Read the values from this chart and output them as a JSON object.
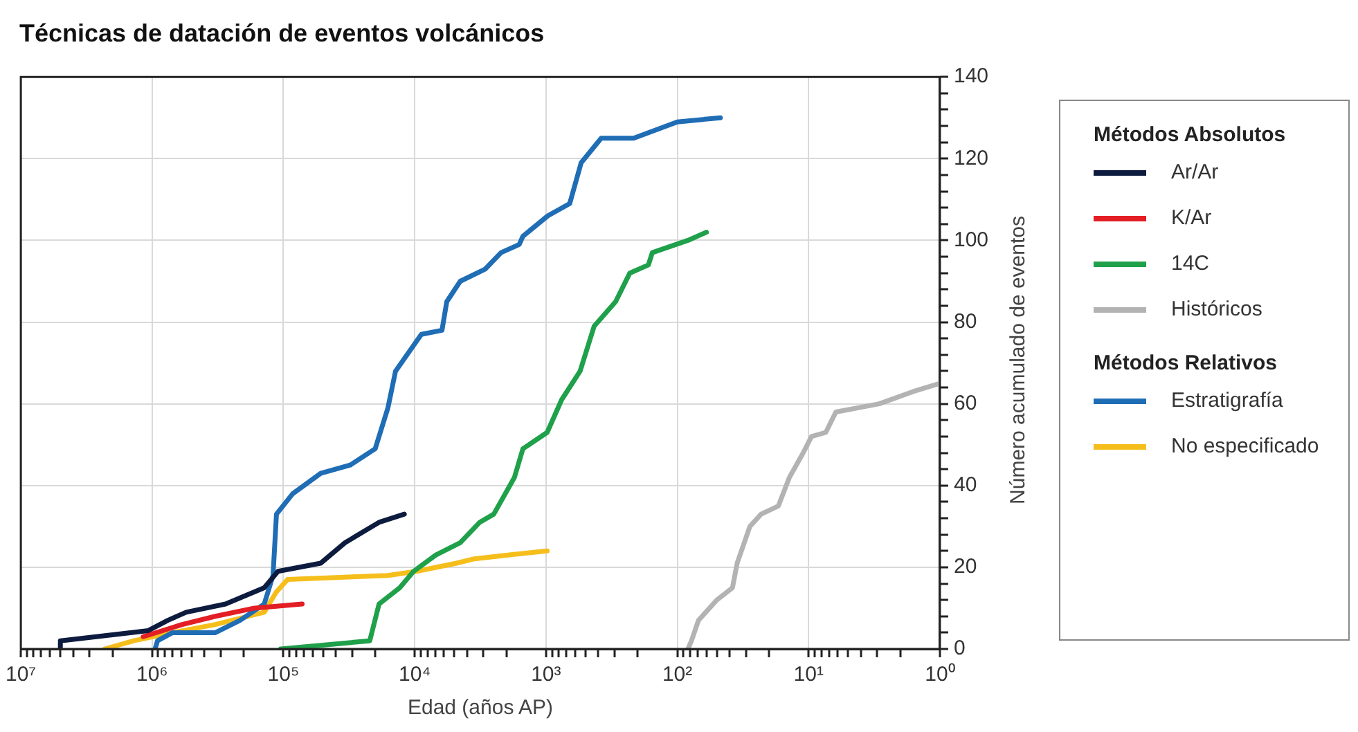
{
  "chart_data": {
    "type": "line",
    "title": "Técnicas de datación de eventos volcánicos",
    "xlabel": "Edad (años AP)",
    "ylabel": "Número acumulado de eventos",
    "annotations": [
      "Métodos Absolutos",
      "Métodos Relativos"
    ],
    "log": "x",
    "grid": true,
    "legend": "right",
    "marker": "none",
    "line_style": "solid",
    "xlim": [
      10000000,
      1
    ],
    "ylim": [
      0,
      140
    ],
    "xticks": [
      {
        "value": 10000000,
        "label": "10⁷"
      },
      {
        "value": 9000000,
        "label": null
      },
      {
        "value": 8000000,
        "label": null
      },
      {
        "value": 7000000,
        "label": null
      },
      {
        "value": 6000000,
        "label": null
      },
      {
        "value": 5000000,
        "label": null
      },
      {
        "value": 4000000,
        "label": null
      },
      {
        "value": 3000000,
        "label": null
      },
      {
        "value": 2000000,
        "label": null
      },
      {
        "value": 1000000,
        "label": "10⁶"
      },
      {
        "value": 900000,
        "label": null
      },
      {
        "value": 800000,
        "label": null
      },
      {
        "value": 700000,
        "label": null
      },
      {
        "value": 600000,
        "label": null
      },
      {
        "value": 500000,
        "label": null
      },
      {
        "value": 400000,
        "label": null
      },
      {
        "value": 300000,
        "label": null
      },
      {
        "value": 200000,
        "label": null
      },
      {
        "value": 100000,
        "label": "10⁵"
      },
      {
        "value": 90000,
        "label": null
      },
      {
        "value": 80000,
        "label": null
      },
      {
        "value": 70000,
        "label": null
      },
      {
        "value": 60000,
        "label": null
      },
      {
        "value": 50000,
        "label": null
      },
      {
        "value": 40000,
        "label": null
      },
      {
        "value": 30000,
        "label": null
      },
      {
        "value": 20000,
        "label": null
      },
      {
        "value": 10000,
        "label": "10⁴"
      },
      {
        "value": 9000,
        "label": null
      },
      {
        "value": 8000,
        "label": null
      },
      {
        "value": 7000,
        "label": null
      },
      {
        "value": 6000,
        "label": null
      },
      {
        "value": 5000,
        "label": null
      },
      {
        "value": 4000,
        "label": null
      },
      {
        "value": 3000,
        "label": null
      },
      {
        "value": 2000,
        "label": null
      },
      {
        "value": 1000,
        "label": "10³"
      },
      {
        "value": 900,
        "label": null
      },
      {
        "value": 800,
        "label": null
      },
      {
        "value": 700,
        "label": null
      },
      {
        "value": 600,
        "label": null
      },
      {
        "value": 500,
        "label": null
      },
      {
        "value": 400,
        "label": null
      },
      {
        "value": 300,
        "label": null
      },
      {
        "value": 200,
        "label": null
      },
      {
        "value": 100,
        "label": "10²"
      },
      {
        "value": 90,
        "label": null
      },
      {
        "value": 80,
        "label": null
      },
      {
        "value": 70,
        "label": null
      },
      {
        "value": 60,
        "label": null
      },
      {
        "value": 50,
        "label": null
      },
      {
        "value": 40,
        "label": null
      },
      {
        "value": 30,
        "label": null
      },
      {
        "value": 20,
        "label": null
      },
      {
        "value": 10,
        "label": "10¹"
      },
      {
        "value": 9,
        "label": null
      },
      {
        "value": 8,
        "label": null
      },
      {
        "value": 7,
        "label": null
      },
      {
        "value": 6,
        "label": null
      },
      {
        "value": 5,
        "label": null
      },
      {
        "value": 4,
        "label": null
      },
      {
        "value": 3,
        "label": null
      },
      {
        "value": 2,
        "label": null
      },
      {
        "value": 1,
        "label": "10⁰"
      }
    ],
    "yticks": [
      0,
      {
        "value": 4,
        "label": null
      },
      {
        "value": 8,
        "label": null
      },
      {
        "value": 12,
        "label": null
      },
      {
        "value": 16,
        "label": null
      },
      20,
      {
        "value": 24,
        "label": null
      },
      {
        "value": 28,
        "label": null
      },
      {
        "value": 32,
        "label": null
      },
      {
        "value": 36,
        "label": null
      },
      40,
      {
        "value": 44,
        "label": null
      },
      {
        "value": 48,
        "label": null
      },
      {
        "value": 52,
        "label": null
      },
      {
        "value": 56,
        "label": null
      },
      60,
      {
        "value": 64,
        "label": null
      },
      {
        "value": 68,
        "label": null
      },
      {
        "value": 72,
        "label": null
      },
      {
        "value": 76,
        "label": null
      },
      80,
      {
        "value": 84,
        "label": null
      },
      {
        "value": 88,
        "label": null
      },
      {
        "value": 92,
        "label": null
      },
      {
        "value": 96,
        "label": null
      },
      100,
      {
        "value": 104,
        "label": null
      },
      {
        "value": 108,
        "label": null
      },
      {
        "value": 112,
        "label": null
      },
      {
        "value": 116,
        "label": null
      },
      120,
      {
        "value": 124,
        "label": null
      },
      {
        "value": 128,
        "label": null
      },
      {
        "value": 132,
        "label": null
      },
      {
        "value": 136,
        "label": null
      },
      140
    ],
    "series": [
      {
        "name": "Ar/Ar",
        "color": "#0d1b3e",
        "x": [
          5000000,
          5000000,
          1070000,
          760000,
          550000,
          276000,
          140000,
          110000,
          52000,
          34000,
          18700,
          12000
        ],
        "values": [
          0,
          2,
          4.5,
          7,
          9,
          11,
          15,
          19,
          21,
          26,
          31,
          33
        ]
      },
      {
        "name": "K/Ar",
        "color": "#e31e24",
        "x": [
          1170000,
          590000,
          330000,
          166000,
          72000
        ],
        "values": [
          3,
          6,
          8,
          10,
          11
        ]
      },
      {
        "name": "14C",
        "color": "#1fa04a",
        "x": [
          105000,
          22000,
          18700,
          13000,
          10200,
          6900,
          4500,
          3200,
          2500,
          1740,
          1500,
          980,
          760,
          550,
          430,
          295,
          230,
          166,
          155,
          83,
          60
        ],
        "values": [
          0,
          2,
          11,
          15,
          19,
          23,
          26,
          31,
          33,
          42,
          49,
          53,
          61,
          68,
          79,
          85,
          92,
          94,
          97,
          100,
          102
        ]
      },
      {
        "name": "Históricos",
        "color": "#b3b3b3",
        "x": [
          83,
          78,
          69,
          50,
          38,
          35,
          28,
          23,
          17,
          14,
          11,
          9.5,
          7.4,
          6.2,
          2.9,
          1.6,
          1
        ],
        "values": [
          0,
          2,
          7,
          12,
          15,
          21,
          30,
          33,
          35,
          42,
          48,
          52,
          53,
          58,
          60,
          63,
          65
        ]
      },
      {
        "name": "Estratigrafía",
        "color": "#1f6db5",
        "x": [
          950000,
          910000,
          700000,
          330000,
          214000,
          140000,
          120000,
          113000,
          85000,
          52000,
          31000,
          20000,
          16000,
          14000,
          8900,
          6200,
          5700,
          4500,
          2900,
          2200,
          1600,
          1500,
          970,
          660,
          540,
          380,
          215,
          100,
          47
        ],
        "values": [
          0,
          2,
          4,
          4,
          7,
          11,
          18,
          33,
          38,
          43,
          45,
          49,
          59,
          68,
          77,
          78,
          85,
          90,
          93,
          97,
          99,
          101,
          106,
          109,
          119,
          125,
          125,
          129,
          130
        ]
      },
      {
        "name": "No especificado",
        "color": "#f5be1b",
        "x": [
          2300000,
          1380000,
          700000,
          330000,
          140000,
          113000,
          93000,
          16000,
          9700,
          4800,
          3600,
          1950,
          980
        ],
        "values": [
          0,
          2,
          4,
          6,
          9,
          14,
          17,
          18,
          19,
          21,
          22,
          23,
          24
        ]
      }
    ]
  }
}
